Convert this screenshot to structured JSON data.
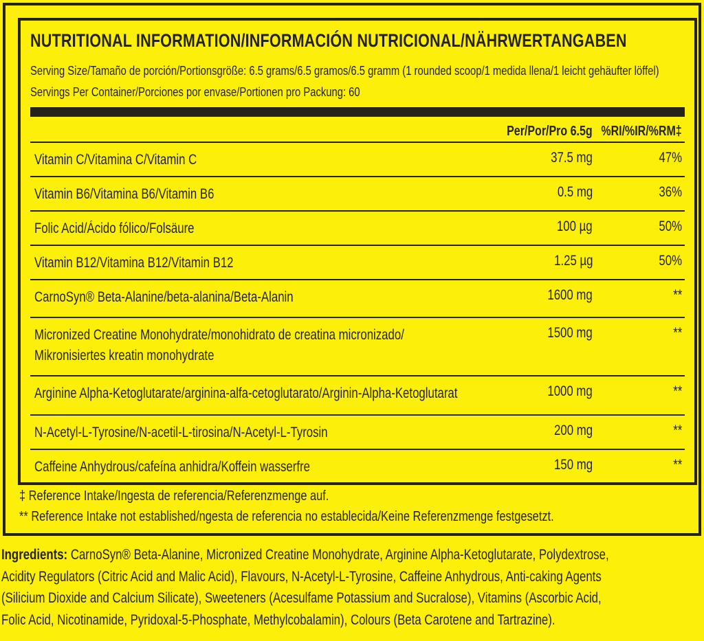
{
  "title": "NUTRITIONAL INFORMATION/INFORMACIÓN NUTRICIONAL/NÄHRWERTANGABEN",
  "serving_size": "Serving Size/Tamaño de porción/Portionsgröße: 6.5 grams/6.5 gramos/6.5 gramm (1 rounded scoop/1 medida llena/1 leicht gehäufter löffel)",
  "servings_per_container": "Servings Per Container/Porciones por envase/Portionen pro Packung: 60",
  "header": {
    "amount": "Per/Por/Pro 6.5g",
    "ri": "%RI/%IR/%RM‡"
  },
  "rows": [
    {
      "name": "Vitamin C/Vitamina C/Vitamin C",
      "amount": "37.5 mg",
      "ri": "47%"
    },
    {
      "name": "Vitamin B6/Vitamina B6/Vitamin B6",
      "amount": "0.5 mg",
      "ri": "36%"
    },
    {
      "name": "Folic Acid/Ácido fólico/Folsäure",
      "amount": "100 µg",
      "ri": "50%"
    },
    {
      "name": "Vitamin B12/Vitamina B12/Vitamin B12",
      "amount": "1.25 µg",
      "ri": "50%"
    },
    {
      "name": "CarnoSyn® Beta-Alanine/beta-alanina/Beta-Alanin",
      "amount": "1600 mg",
      "ri": "**"
    },
    {
      "name": "Micronized Creatine Monohydrate/monohidrato de creatina micronizado/",
      "name2": "Mikronisiertes kreatin monohydrate",
      "amount": "1500 mg",
      "ri": "**"
    },
    {
      "name": "Arginine Alpha-Ketoglutarate/arginina-alfa-cetoglutarato/Arginin-Alpha-Ketoglutarat",
      "amount": "1000 mg",
      "ri": "**"
    },
    {
      "name": "N-Acetyl-L-Tyrosine/N-acetil-L-tirosina/N-Acetyl-L-Tyrosin",
      "amount": "200 mg",
      "ri": "**"
    },
    {
      "name": "Caffeine Anhydrous/cafeína anhidra/Koffein wasserfre",
      "amount": "150 mg",
      "ri": "**"
    }
  ],
  "footnotes": [
    "‡ Reference Intake/Ingesta de referencia/Referenzmenge auf.",
    "** Reference Intake not established/ngesta de referencia no establecida/Keine Referenzmenge festgesetzt."
  ],
  "ingredients": {
    "label": "Ingredients:",
    "lines": [
      " CarnoSyn® Beta-Alanine, Micronized Creatine Monohydrate, Arginine Alpha-Ketoglutarate, Polydextrose,",
      "Acidity Regulators (Citric Acid and Malic Acid), Flavours, N-Acetyl-L-Tyrosine, Caffeine Anhydrous, Anti-caking Agents",
      "(Silicium Dioxide and Calcium Silicate), Sweeteners (Acesulfame Potassium and Sucralose), Vitamins (Ascorbic Acid,",
      "Folic Acid, Nicotinamide, Pyridoxal-5-Phosphate, Methylcobalamin), Colours (Beta Carotene and Tartrazine)."
    ]
  },
  "colors": {
    "background": "#fcef0a",
    "ink": "#26241a"
  }
}
